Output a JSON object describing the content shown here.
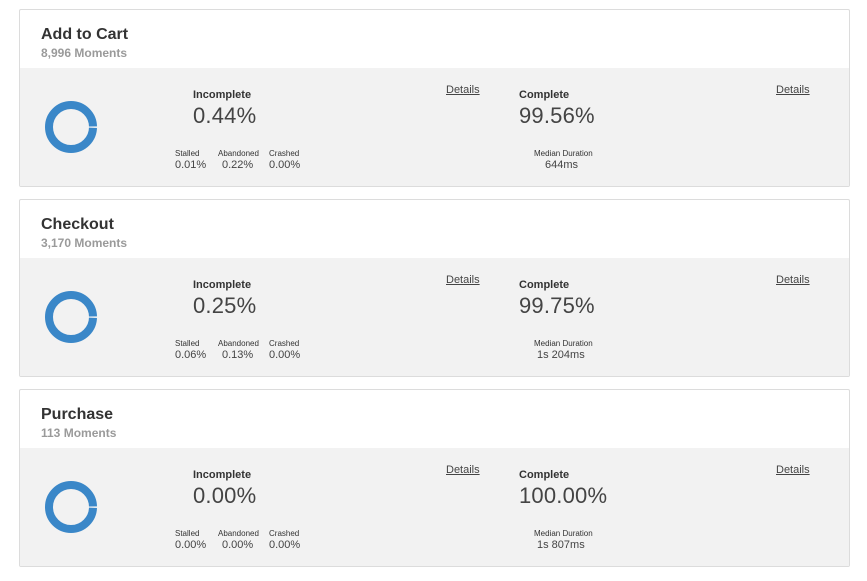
{
  "colors": {
    "donut": "#3a87c8",
    "panel": "#f2f2f2"
  },
  "cards": [
    {
      "title": "Add to Cart",
      "moments": "8,996 Moments",
      "incomplete_label": "Incomplete",
      "incomplete_value": "0.44%",
      "incomplete_fraction": 0.0044,
      "details_label": "Details",
      "complete_label": "Complete",
      "complete_value": "99.56%",
      "stalled_label": "Stalled",
      "stalled_value": "0.01%",
      "abandoned_label": "Abandoned",
      "abandoned_value": "0.22%",
      "crashed_label": "Crashed",
      "crashed_value": "0.00%",
      "median_label": "Median Duration",
      "median_value": "644ms"
    },
    {
      "title": "Checkout",
      "moments": "3,170 Moments",
      "incomplete_label": "Incomplete",
      "incomplete_value": "0.25%",
      "incomplete_fraction": 0.0025,
      "details_label": "Details",
      "complete_label": "Complete",
      "complete_value": "99.75%",
      "stalled_label": "Stalled",
      "stalled_value": "0.06%",
      "abandoned_label": "Abandoned",
      "abandoned_value": "0.13%",
      "crashed_label": "Crashed",
      "crashed_value": "0.00%",
      "median_label": "Median Duration",
      "median_value": "1s 204ms"
    },
    {
      "title": "Purchase",
      "moments": "113 Moments",
      "incomplete_label": "Incomplete",
      "incomplete_value": "0.00%",
      "incomplete_fraction": 0.0,
      "details_label": "Details",
      "complete_label": "Complete",
      "complete_value": "100.00%",
      "stalled_label": "Stalled",
      "stalled_value": "0.00%",
      "abandoned_label": "Abandoned",
      "abandoned_value": "0.00%",
      "crashed_label": "Crashed",
      "crashed_value": "0.00%",
      "median_label": "Median Duration",
      "median_value": "1s 807ms"
    }
  ]
}
